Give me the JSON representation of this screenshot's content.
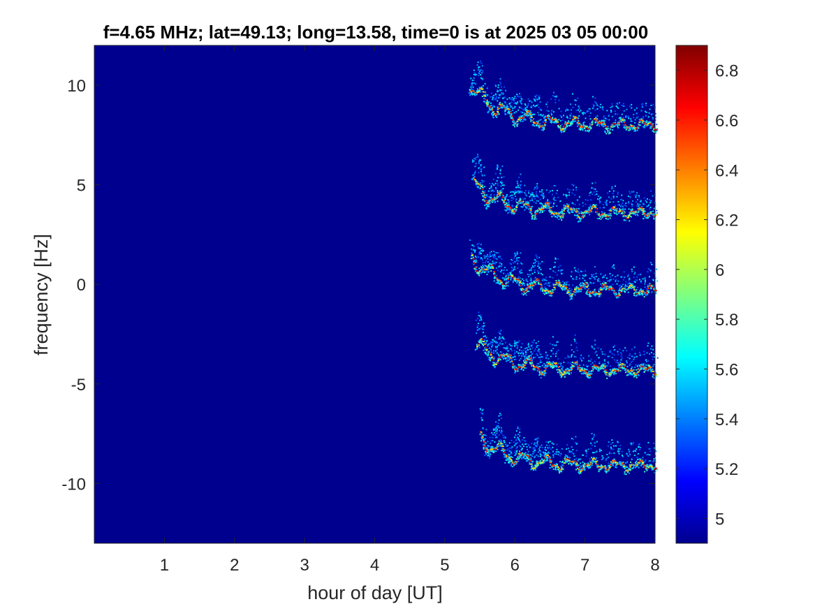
{
  "chart_data": {
    "type": "heatmap",
    "title": "f=4.65 MHz;  lat=49.13; long=13.58, time=0 is at 2025 03 05 00:00",
    "xlabel": "hour of day [UT]",
    "ylabel": "frequency [Hz]",
    "xlim": [
      0,
      8
    ],
    "ylim": [
      -13,
      12
    ],
    "x_ticks": [
      1,
      2,
      3,
      4,
      5,
      6,
      7,
      8
    ],
    "x_tick_labels": [
      "1",
      "2",
      "3",
      "4",
      "5",
      "6",
      "7",
      "8"
    ],
    "y_ticks": [
      10,
      5,
      0,
      -5,
      -10
    ],
    "y_tick_labels": [
      "10",
      "5",
      "0",
      "-5",
      "-10"
    ],
    "colormap": "jet",
    "background_value": 4.9,
    "colorbar": {
      "range": [
        4.9,
        6.9
      ],
      "ticks": [
        6.8,
        6.6,
        6.4,
        6.2,
        6.0,
        5.8,
        5.6,
        5.4,
        5.2,
        5.0
      ],
      "tick_labels": [
        "6.8",
        "6.6",
        "6.4",
        "6.2",
        "6",
        "5.8",
        "5.6",
        "5.4",
        "5.2",
        "5"
      ]
    },
    "traces": [
      {
        "start_hour": 5.35,
        "end_hour": 8.0,
        "start_freq": 10.0,
        "end_freq": 8.0
      },
      {
        "start_hour": 5.4,
        "end_hour": 8.0,
        "start_freq": 5.0,
        "end_freq": 3.6
      },
      {
        "start_hour": 5.38,
        "end_hour": 8.0,
        "start_freq": 1.3,
        "end_freq": -0.3
      },
      {
        "start_hour": 5.45,
        "end_hour": 8.0,
        "start_freq": -3.0,
        "end_freq": -4.3
      },
      {
        "start_hour": 5.5,
        "end_hour": 8.0,
        "start_freq": -7.7,
        "end_freq": -9.1
      }
    ]
  }
}
